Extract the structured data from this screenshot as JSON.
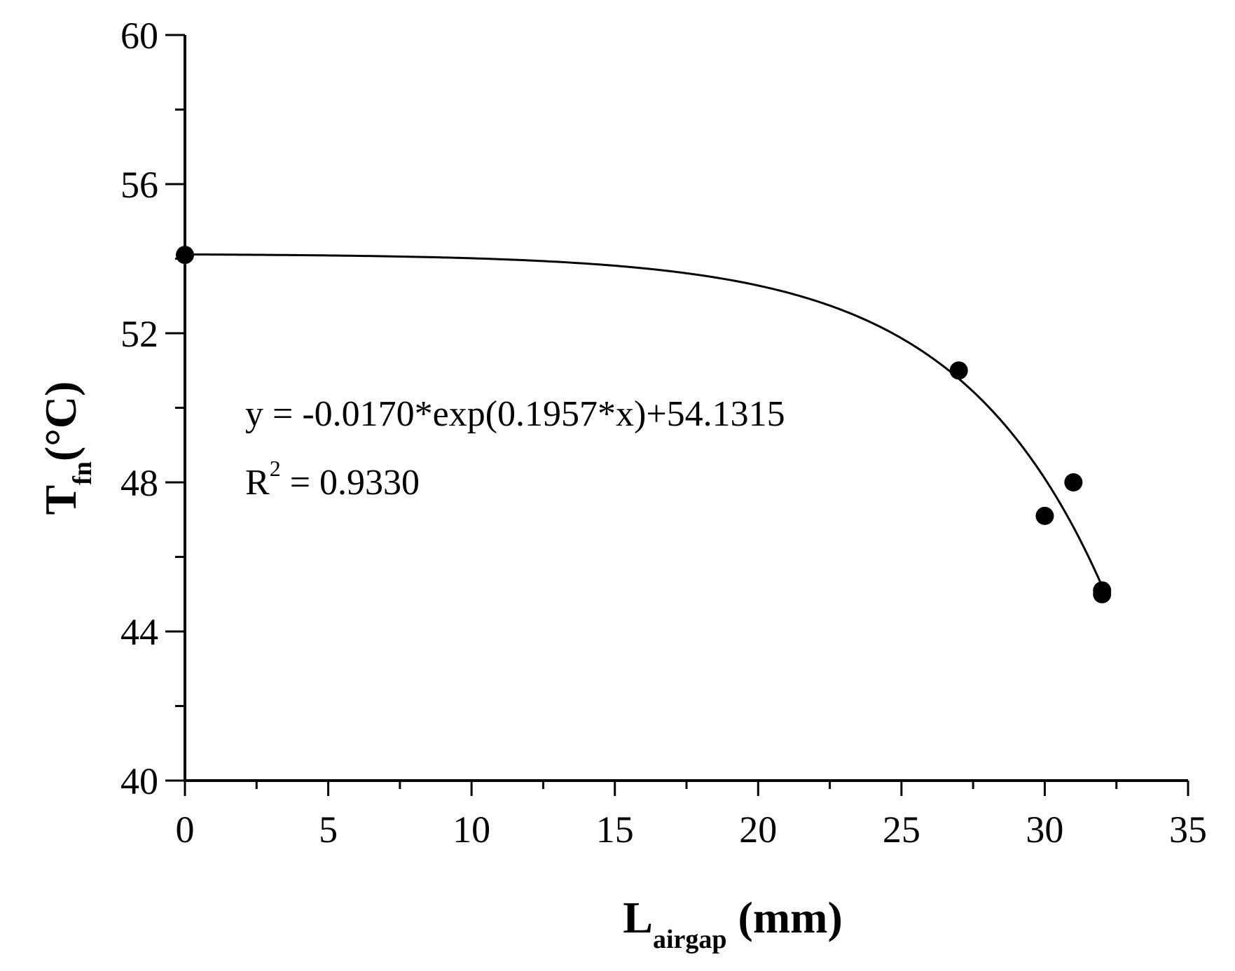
{
  "chart_data": {
    "type": "scatter",
    "xlabel": {
      "main": "L",
      "sub": "airgap",
      "unit": " (mm)"
    },
    "ylabel": {
      "main": "T",
      "sub": "fn",
      "unit": "(°C)"
    },
    "xlim": [
      0,
      35
    ],
    "ylim": [
      40,
      60
    ],
    "x_ticks": [
      0,
      5,
      10,
      15,
      20,
      25,
      30,
      35
    ],
    "y_ticks": [
      40,
      44,
      48,
      52,
      56,
      60
    ],
    "x_minor_step": 2.5,
    "y_minor_step": 2,
    "series": [
      {
        "points": [
          {
            "x": 0,
            "y": 54.1
          },
          {
            "x": 27,
            "y": 51.0
          },
          {
            "x": 30,
            "y": 47.1
          },
          {
            "x": 31,
            "y": 48.0
          },
          {
            "x": 32,
            "y": 45.0
          },
          {
            "x": 32,
            "y": 45.1
          }
        ]
      }
    ],
    "fit": {
      "model": "exponential",
      "a": -0.017,
      "b": 0.1957,
      "c": 54.1315,
      "x_range": [
        0,
        32
      ],
      "equation_text": "y = -0.0170*exp(0.1957*x)+54.1315",
      "r2_label": "R",
      "r2_exp": "2",
      "r2_value": " = 0.9330"
    },
    "grid": false,
    "legend": "none"
  }
}
